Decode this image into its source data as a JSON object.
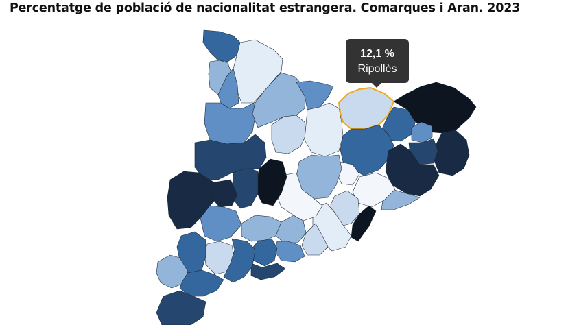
{
  "title": "Percentatge de població de nacionalitat estrangera. Comarques i Aran. 2023",
  "colors": {
    "scale": [
      "#f3f7fb",
      "#c9daee",
      "#94b5da",
      "#5f8fc4",
      "#35679f",
      "#24466f",
      "#182a44",
      "#0c1520"
    ],
    "highlight": "#f0a91c",
    "tooltip_bg": "#333333"
  },
  "tooltip": {
    "value": "12,1 %",
    "region": "Ripollès"
  }
}
